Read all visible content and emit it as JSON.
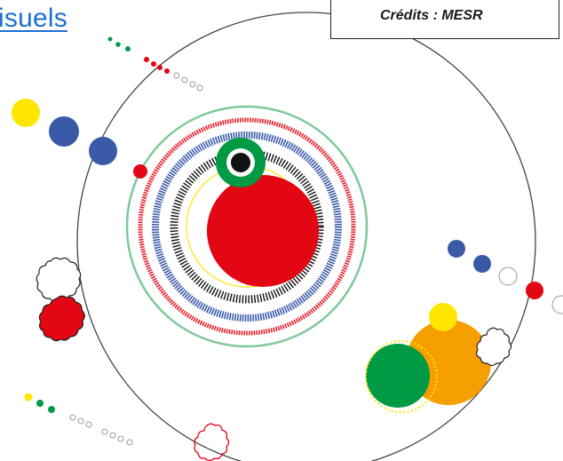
{
  "link": {
    "label": "isuels"
  },
  "credits": {
    "text": "Crédits : MESR"
  },
  "colors": {
    "red": "#e30613",
    "blue": "#3a5aa8",
    "green": "#009a44",
    "yellow": "#ffe600",
    "orange": "#f5a000",
    "light_green": "#7ec99a",
    "black": "#111111",
    "link": "#1f6fd1"
  }
}
